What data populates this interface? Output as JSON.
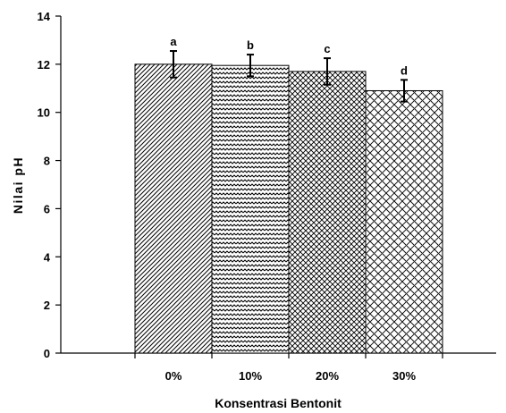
{
  "chart_data": {
    "type": "bar",
    "title": "",
    "xlabel": "Konsentrasi Bentonit",
    "ylabel": "Nilai pH",
    "categories": [
      "0%",
      "10%",
      "20%",
      "30%"
    ],
    "values": [
      12.0,
      11.95,
      11.7,
      10.9
    ],
    "errors": [
      0.55,
      0.45,
      0.55,
      0.45
    ],
    "significance_labels": [
      "a",
      "b",
      "c",
      "d"
    ],
    "patterns": [
      "diagonal-hatch",
      "wave",
      "crosshatch",
      "brick-diagonal"
    ],
    "ylim": [
      0,
      14
    ],
    "yticks": [
      0,
      2,
      4,
      6,
      8,
      10,
      12,
      14
    ],
    "grid": false,
    "legend": "none",
    "colors": {
      "bar_fill": "#ffffff",
      "stroke": "#000000"
    }
  }
}
